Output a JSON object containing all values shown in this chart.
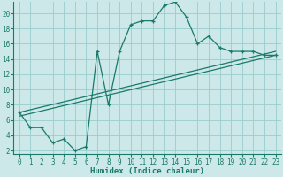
{
  "bg_color": "#cce8e8",
  "grid_color": "#99cccc",
  "line_color": "#1a7a6a",
  "xlabel": "Humidex (Indice chaleur)",
  "xlim": [
    -0.5,
    23.5
  ],
  "ylim": [
    1.5,
    21.5
  ],
  "xticks": [
    0,
    1,
    2,
    3,
    4,
    5,
    6,
    7,
    8,
    9,
    10,
    11,
    12,
    13,
    14,
    15,
    16,
    17,
    18,
    19,
    20,
    21,
    22,
    23
  ],
  "yticks": [
    2,
    4,
    6,
    8,
    10,
    12,
    14,
    16,
    18,
    20
  ],
  "line1_x": [
    0,
    1,
    2,
    3,
    4,
    5,
    6,
    7,
    8,
    9,
    10,
    11,
    12,
    13,
    14,
    15,
    16,
    17,
    18,
    19,
    20,
    21,
    22,
    23
  ],
  "line1_y": [
    7,
    5,
    5,
    3,
    3.5,
    2,
    2.5,
    15,
    8,
    15,
    18.5,
    19,
    19,
    21,
    21.5,
    19.5,
    16,
    17,
    15.5,
    15,
    15,
    15,
    14.5,
    14.5
  ],
  "line2_x": [
    0,
    23
  ],
  "line2_y": [
    6.5,
    14.5
  ],
  "line3_x": [
    0,
    23
  ],
  "line3_y": [
    7.0,
    15.0
  ]
}
